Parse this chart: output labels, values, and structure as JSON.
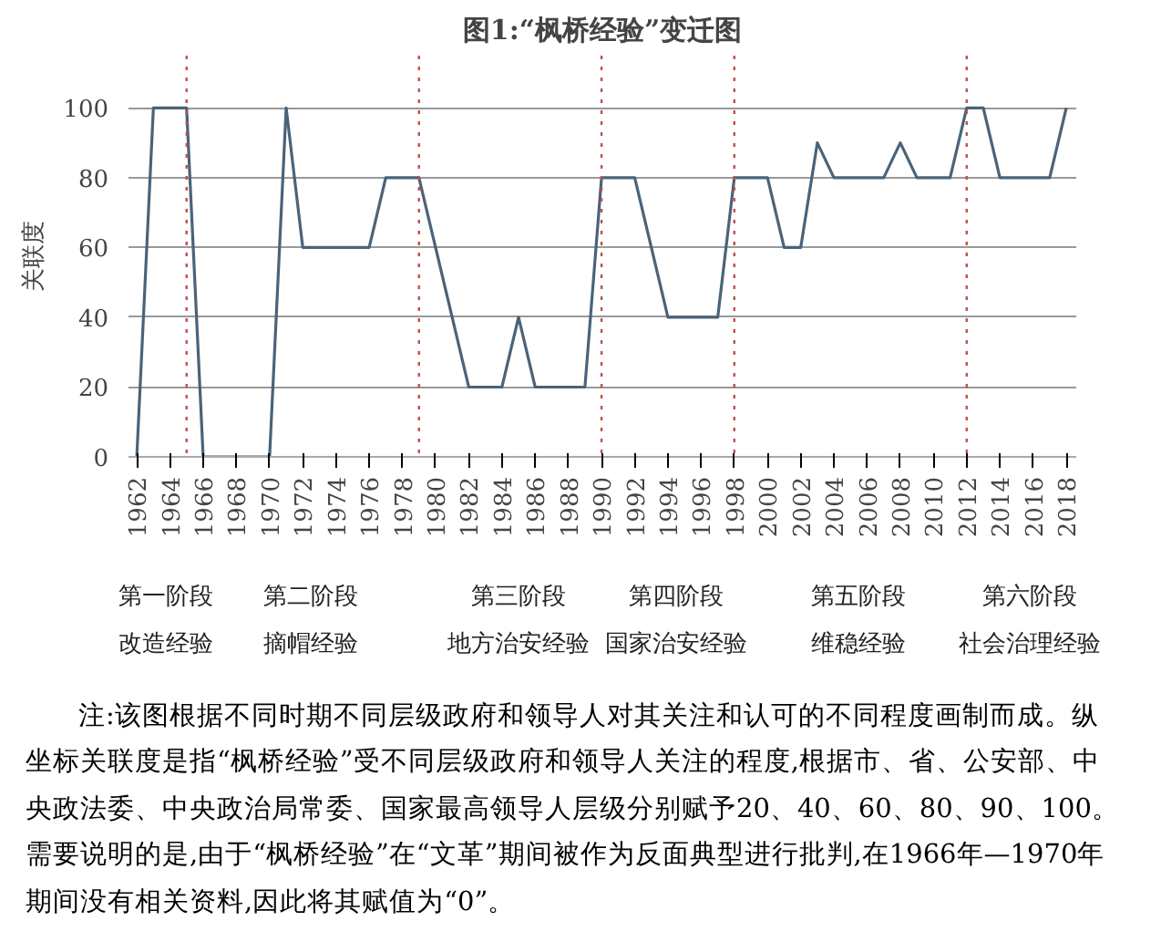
{
  "chart_data": {
    "type": "line",
    "title": "图1:“枫桥经验”变迁图",
    "ylabel": "关联度",
    "x": [
      1962,
      1963,
      1964,
      1965,
      1966,
      1967,
      1968,
      1969,
      1970,
      1971,
      1972,
      1973,
      1974,
      1975,
      1976,
      1977,
      1978,
      1979,
      1980,
      1981,
      1982,
      1983,
      1984,
      1985,
      1986,
      1987,
      1988,
      1989,
      1990,
      1991,
      1992,
      1993,
      1994,
      1995,
      1996,
      1997,
      1998,
      1999,
      2000,
      2001,
      2002,
      2003,
      2004,
      2005,
      2006,
      2007,
      2008,
      2009,
      2010,
      2011,
      2012,
      2013,
      2014,
      2015,
      2016,
      2017,
      2018
    ],
    "series": [
      {
        "color": "#4a6379",
        "values": [
          0,
          100,
          100,
          100,
          0,
          0,
          0,
          0,
          0,
          100,
          60,
          60,
          60,
          60,
          60,
          80,
          80,
          80,
          60,
          40,
          20,
          20,
          20,
          40,
          20,
          20,
          20,
          20,
          80,
          80,
          80,
          60,
          40,
          40,
          40,
          40,
          80,
          80,
          80,
          60,
          60,
          90,
          80,
          80,
          80,
          80,
          90,
          80,
          80,
          80,
          100,
          100,
          80,
          80,
          80,
          80,
          100
        ]
      }
    ],
    "xlim": [
      1961.5,
      2018.6
    ],
    "ylim": [
      0,
      115
    ],
    "xticks": [
      1962,
      1964,
      1966,
      1968,
      1970,
      1972,
      1974,
      1976,
      1978,
      1980,
      1982,
      1984,
      1986,
      1988,
      1990,
      1992,
      1994,
      1996,
      1998,
      2000,
      2002,
      2004,
      2006,
      2008,
      2010,
      2012,
      2014,
      2016,
      2018
    ],
    "yticks": [
      0,
      20,
      40,
      60,
      80,
      100
    ],
    "grid": "y",
    "marker": "none",
    "line_style": "solid",
    "ref_lines": [
      {
        "axis": "x",
        "value": 1965,
        "color": "#c0504d",
        "line_style": "dotted"
      },
      {
        "axis": "x",
        "value": 1979,
        "color": "#c0504d",
        "line_style": "dotted"
      },
      {
        "axis": "x",
        "value": 1990,
        "color": "#c0504d",
        "line_style": "dotted"
      },
      {
        "axis": "x",
        "value": 1998,
        "color": "#c0504d",
        "line_style": "dotted"
      },
      {
        "axis": "x",
        "value": 2012,
        "color": "#c0504d",
        "line_style": "dotted"
      }
    ],
    "annotations": [
      "第一阶段",
      "改造经验",
      "第二阶段",
      "摘帽经验",
      "第三阶段",
      "地方治安经验",
      "第四阶段",
      "国家治安经验",
      "第五阶段",
      "维稳经验",
      "第六阶段",
      "社会治理经验",
      "注:该图根据不同时期不同层级政府和领导人对其关注和认可的不同程度画制而成。纵坐标关联度是指“枫桥经验”受不同层级政府和领导人关注的程度,根据市、省、公安部、中央政法委、中央政治局常委、国家最高领导人层级分别赋予20、40、60、80、90、100。需要说明的是,由于“枫桥经验”在“文革”期间被作为反面典型进行批判,在1966年—1970年期间没有相关资料,因此将其赋值为“0”。"
    ]
  }
}
